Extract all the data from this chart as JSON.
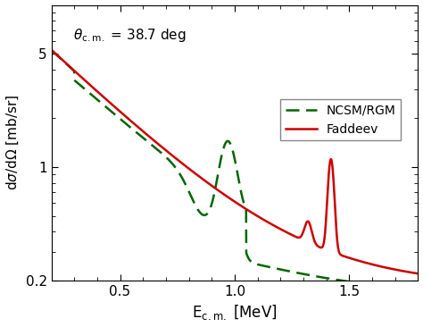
{
  "xlabel": "E$_{c.m.}$ [MeV]",
  "ylabel": "dσ/dΩ [mb/sr]",
  "xlim": [
    0.2,
    1.8
  ],
  "ylim": [
    0.2,
    10
  ],
  "yticks": [
    0.2,
    1,
    5
  ],
  "ytick_labels": [
    "0.2",
    "1",
    "5"
  ],
  "xticks": [
    0.5,
    1.0,
    1.5
  ],
  "legend_entries": [
    "NCSM/RGM",
    "Faddeev"
  ],
  "line_colors": [
    "#006600",
    "#cc0000"
  ],
  "bg_color": "#ffffff"
}
